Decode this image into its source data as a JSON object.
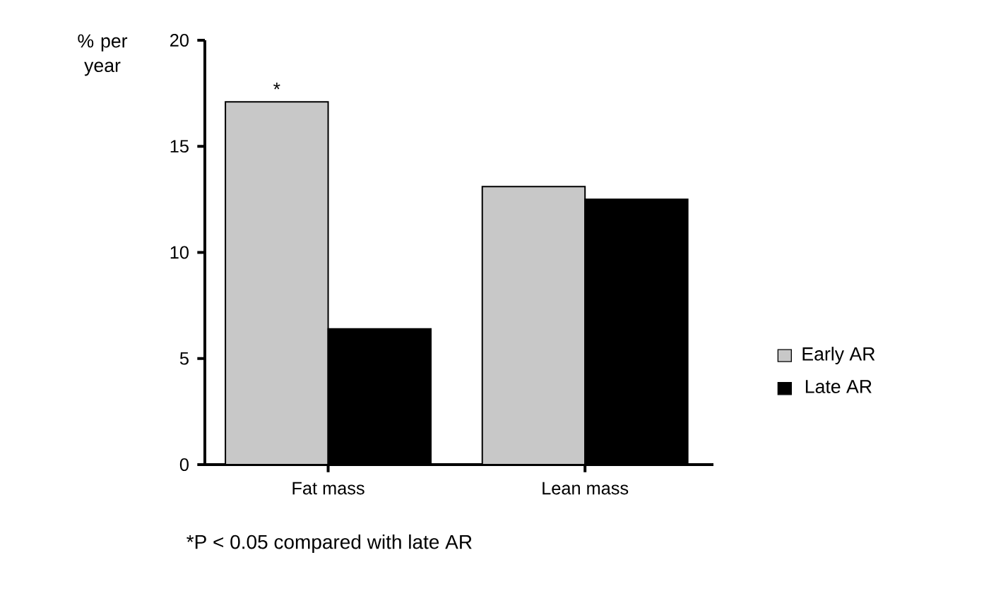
{
  "chart_data": {
    "type": "bar",
    "ylabel": "% per year",
    "categories": [
      "Fat mass",
      "Lean mass"
    ],
    "series": [
      {
        "name": "Early AR",
        "color": "#c8c8c8",
        "values": [
          17.1,
          13.1
        ]
      },
      {
        "name": "Late AR",
        "color": "#000000",
        "values": [
          6.4,
          12.5
        ]
      }
    ],
    "ylim": [
      0,
      20
    ],
    "yticks": [
      0,
      5,
      10,
      15,
      20
    ],
    "grid": false,
    "legend": "right",
    "annotations": [
      {
        "text": "*",
        "x": "Fat mass",
        "y": 17.1
      },
      "*P < 0.05 compared with late AR"
    ]
  }
}
